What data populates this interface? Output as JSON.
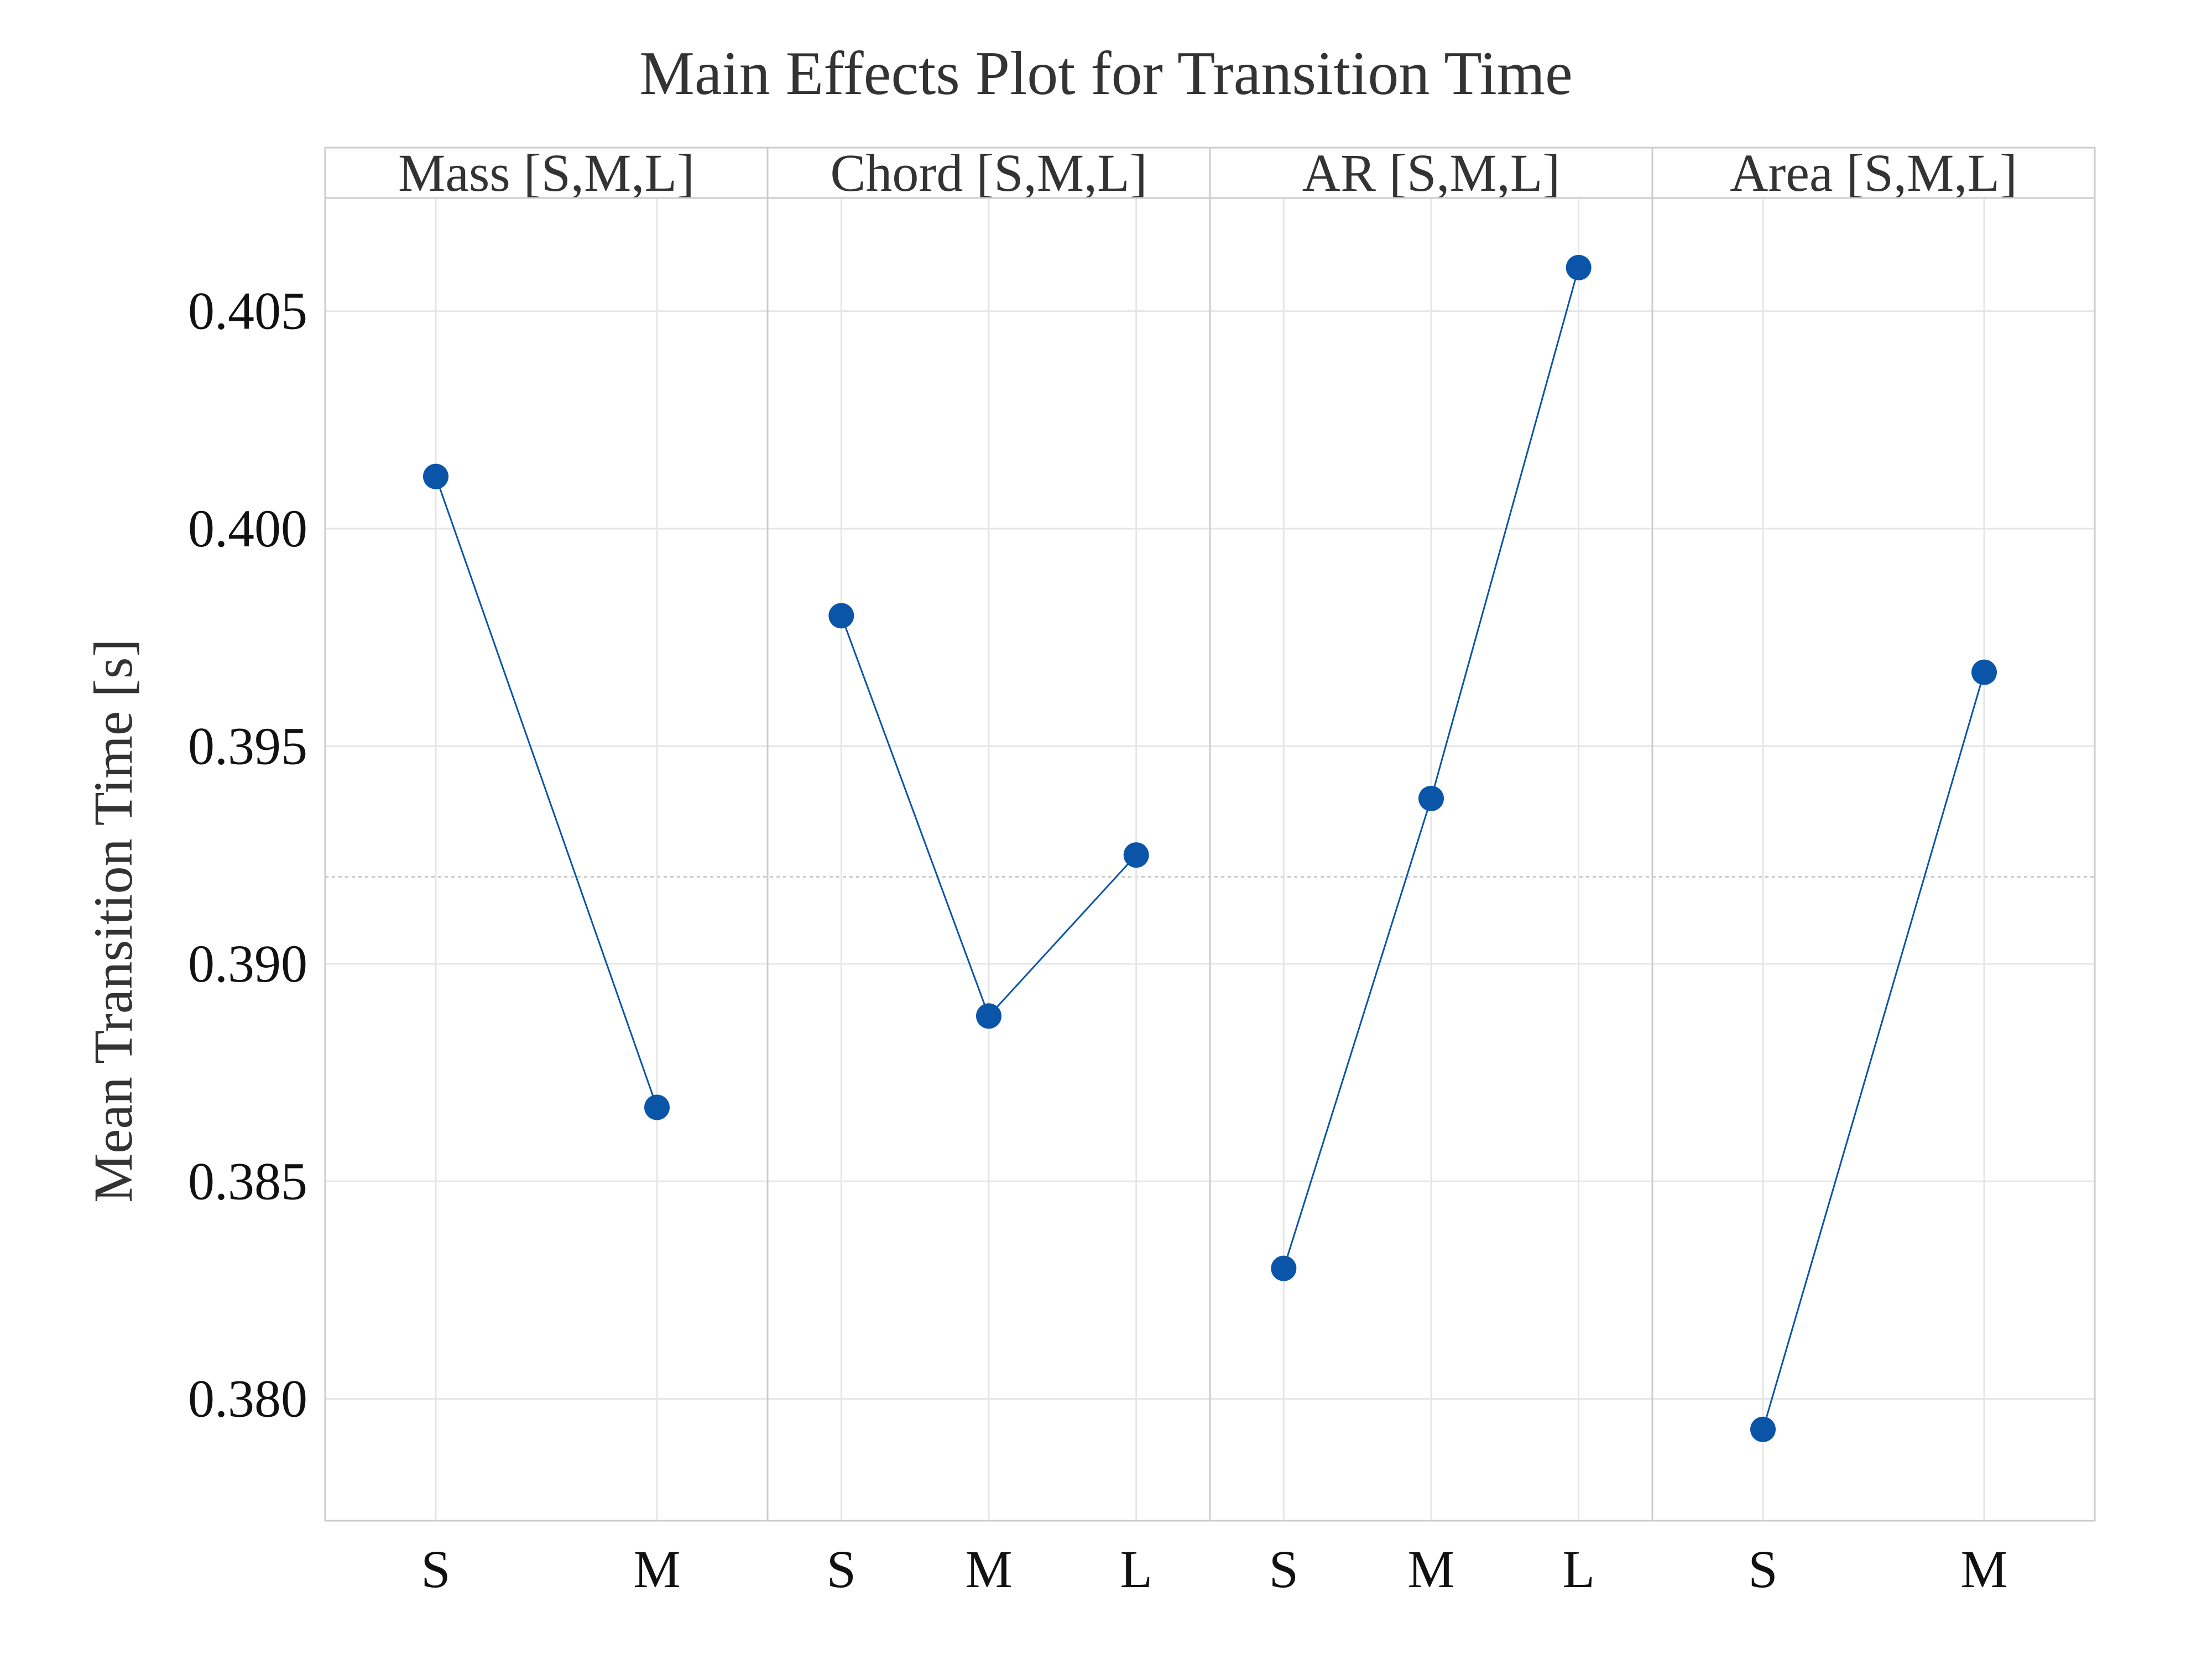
{
  "chart_data": {
    "type": "line",
    "title": "Main Effects Plot for Transition Time",
    "ylabel": "Mean Transition Time [s]",
    "ylim": [
      0.3772,
      0.4076
    ],
    "yticks": [
      "0.380",
      "0.385",
      "0.390",
      "0.395",
      "0.400",
      "0.405"
    ],
    "grand_mean": 0.392,
    "grid": true,
    "color": "#0b55a8",
    "panels": [
      {
        "label": "Mass [S,M,L]",
        "categories": [
          "S",
          "M"
        ],
        "values": [
          0.4012,
          0.3867
        ]
      },
      {
        "label": "Chord [S,M,L]",
        "categories": [
          "S",
          "M",
          "L"
        ],
        "values": [
          0.398,
          0.3888,
          0.3925
        ]
      },
      {
        "label": "AR [S,M,L]",
        "categories": [
          "S",
          "M",
          "L"
        ],
        "values": [
          0.383,
          0.3938,
          0.406
        ]
      },
      {
        "label": "Area [S,M,L]",
        "categories": [
          "S",
          "M"
        ],
        "values": [
          0.3793,
          0.3967
        ]
      }
    ]
  }
}
